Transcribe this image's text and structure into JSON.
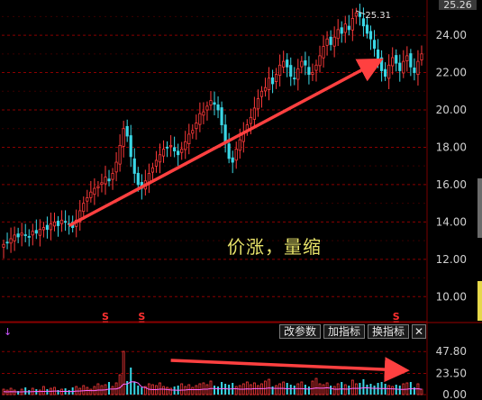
{
  "toolbar": {
    "params_label": "改参数",
    "add_indicator_label": "加指标",
    "switch_indicator_label": "换指标",
    "close_label": "✕"
  },
  "annotation": {
    "text": "价涨，量缩"
  },
  "price_box": {
    "value": "25.26"
  },
  "peak_label": {
    "text": "25.31"
  },
  "volume_marker": "↓",
  "signal_marker": "S",
  "colors": {
    "up": "#ff3b3b",
    "down": "#3ad7e6",
    "grid": "#8b0000",
    "arrow": "#ff4040",
    "annotation": "#e8e36a",
    "axis_text": "#d0d0d0",
    "ma_line": "#ff66ff",
    "signal": "#ff3030"
  },
  "chart_data": {
    "type": "candlestick",
    "price_axis": {
      "ticks": [
        "24.00",
        "22.00",
        "20.00",
        "18.00",
        "16.00",
        "14.00",
        "12.00",
        "10.00"
      ],
      "ylim": [
        9,
        25.5
      ]
    },
    "volume_axis": {
      "ticks": [
        "47.80",
        "23.50",
        "0.00"
      ],
      "ylim": [
        0,
        60
      ]
    },
    "peak_value": 25.31,
    "signals_at_index": [
      28,
      38,
      108
    ],
    "trend_arrow_price": {
      "from": {
        "index": 18,
        "value": 13.8
      },
      "to": {
        "index": 103,
        "value": 22.6
      }
    },
    "trend_arrow_volume": {
      "from": {
        "index": 46,
        "value": 38
      },
      "to": {
        "index": 110,
        "value": 27
      }
    },
    "close_series": [
      12.8,
      12.9,
      13.1,
      13.3,
      13.2,
      13.4,
      13.3,
      13.2,
      13.5,
      13.4,
      13.6,
      13.7,
      13.6,
      13.9,
      14.0,
      13.8,
      14.1,
      14.0,
      13.9,
      13.7,
      14.1,
      14.6,
      15.0,
      15.3,
      15.6,
      15.8,
      15.9,
      16.1,
      16.4,
      16.2,
      16.6,
      17.2,
      18.1,
      19.0,
      18.6,
      17.5,
      16.6,
      16.0,
      15.8,
      16.2,
      16.6,
      16.9,
      17.3,
      17.6,
      17.9,
      18.0,
      18.1,
      17.8,
      17.6,
      17.9,
      18.3,
      18.7,
      18.9,
      19.3,
      19.8,
      19.9,
      20.2,
      20.5,
      20.3,
      20.0,
      19.2,
      18.3,
      17.4,
      17.2,
      17.9,
      18.4,
      18.8,
      19.2,
      19.6,
      20.1,
      20.6,
      21.0,
      21.2,
      21.7,
      21.4,
      21.9,
      22.4,
      22.6,
      22.3,
      21.8,
      21.7,
      22.2,
      22.6,
      22.4,
      21.9,
      22.0,
      22.4,
      22.9,
      23.4,
      23.8,
      23.5,
      23.9,
      24.3,
      24.1,
      24.6,
      24.3,
      24.9,
      25.2,
      25.0,
      24.5,
      24.1,
      23.8,
      23.3,
      22.7,
      22.1,
      21.8,
      22.4,
      22.8,
      22.5,
      22.1,
      22.6,
      22.9,
      22.3,
      22.0,
      22.6,
      23.0
    ],
    "volume_series": [
      6,
      5,
      7,
      5,
      4,
      6,
      8,
      5,
      7,
      6,
      5,
      9,
      6,
      7,
      8,
      5,
      6,
      7,
      5,
      8,
      9,
      7,
      10,
      8,
      6,
      9,
      12,
      10,
      11,
      14,
      9,
      13,
      22,
      48,
      15,
      30,
      14,
      10,
      8,
      9,
      12,
      11,
      10,
      13,
      9,
      8,
      7,
      9,
      10,
      12,
      9,
      11,
      8,
      10,
      12,
      13,
      11,
      15,
      10,
      9,
      14,
      12,
      11,
      13,
      9,
      10,
      12,
      14,
      11,
      13,
      10,
      12,
      15,
      17,
      9,
      10,
      12,
      14,
      13,
      11,
      10,
      12,
      14,
      11,
      9,
      15,
      18,
      12,
      11,
      13,
      10,
      9,
      12,
      14,
      11,
      10,
      16,
      12,
      13,
      17,
      11,
      12,
      10,
      13,
      14,
      12,
      10,
      9,
      11,
      10,
      12,
      13,
      14,
      8,
      12,
      6
    ]
  }
}
